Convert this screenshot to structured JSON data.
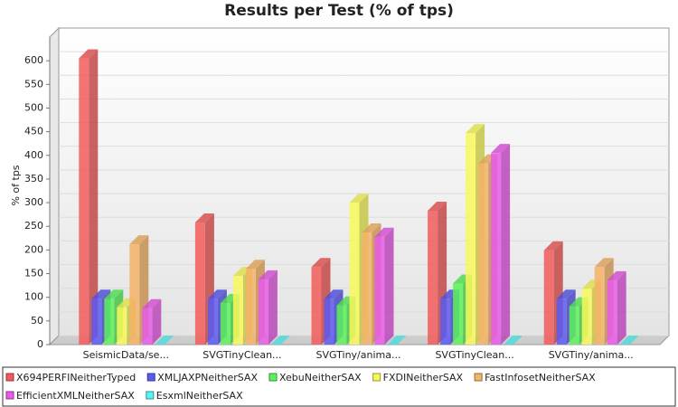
{
  "chart_data": {
    "type": "bar",
    "title": "Results per Test (% of tps)",
    "y_label": "% of tps",
    "categories": [
      "SeismicData/se...",
      "SVGTinyClean...",
      "SVGTiny/anima...",
      "SVGTinyClean...",
      "SVGTiny/anima..."
    ],
    "series": [
      {
        "name": "X694PERFINeitherTyped",
        "color": "#f25a5a",
        "values": [
          605,
          258,
          164,
          283,
          199
        ]
      },
      {
        "name": "XMLJAXPNeitherSAX",
        "color": "#5a5af2",
        "values": [
          97,
          97,
          97,
          97,
          97
        ]
      },
      {
        "name": "XebuNeitherSAX",
        "color": "#5af25a",
        "values": [
          97,
          88,
          83,
          129,
          81
        ]
      },
      {
        "name": "FXDINeitherSAX",
        "color": "#f8f85a",
        "values": [
          79,
          145,
          300,
          447,
          118
        ]
      },
      {
        "name": "FastInfosetNeitherSAX",
        "color": "#f5b366",
        "values": [
          212,
          160,
          237,
          383,
          164
        ]
      },
      {
        "name": "EfficientXMLNeitherSAX",
        "color": "#e85ae8",
        "values": [
          77,
          138,
          228,
          405,
          136
        ]
      },
      {
        "name": "EsxmlNeitherSAX",
        "color": "#5af2f2",
        "values": [
          0,
          0,
          0,
          0,
          0
        ]
      }
    ],
    "ylim": [
      0,
      650
    ],
    "yticks": [
      0,
      50,
      100,
      150,
      200,
      250,
      300,
      350,
      400,
      450,
      500,
      550,
      600
    ],
    "grid": true
  }
}
